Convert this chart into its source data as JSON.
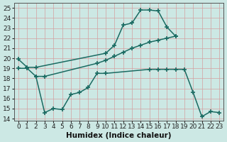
{
  "line1_x": [
    0,
    1,
    2,
    10,
    11,
    12,
    13,
    14,
    15,
    16,
    17,
    18
  ],
  "line1_y": [
    19.9,
    19.1,
    19.1,
    20.5,
    21.3,
    23.3,
    23.5,
    24.8,
    24.8,
    24.7,
    23.1,
    22.2
  ],
  "line2_x": [
    0,
    1,
    2,
    3,
    9,
    10,
    11,
    12,
    13,
    14,
    15,
    16,
    17,
    18
  ],
  "line2_y": [
    19.0,
    19.0,
    18.2,
    18.2,
    19.5,
    19.8,
    20.2,
    20.6,
    21.0,
    21.3,
    21.6,
    21.8,
    22.0,
    22.2
  ],
  "line3_x": [
    2,
    3,
    4,
    5,
    6,
    7,
    8,
    9,
    10,
    15,
    16,
    17,
    18,
    19,
    20,
    21,
    22,
    23
  ],
  "line3_y": [
    18.2,
    14.6,
    15.0,
    14.9,
    16.4,
    16.6,
    17.1,
    18.5,
    18.5,
    18.9,
    18.9,
    18.9,
    18.9,
    18.9,
    16.6,
    14.2,
    14.7,
    14.6
  ],
  "bg_color": "#cce8e4",
  "line_color": "#1a6b62",
  "grid_major_color": "#d4a0a0",
  "xlabel": "Humidex (Indice chaleur)",
  "xlim": [
    -0.5,
    23.5
  ],
  "ylim": [
    13.8,
    25.5
  ],
  "yticks": [
    14,
    15,
    16,
    17,
    18,
    19,
    20,
    21,
    22,
    23,
    24,
    25
  ],
  "xticks": [
    0,
    1,
    2,
    3,
    4,
    5,
    6,
    7,
    8,
    9,
    10,
    11,
    12,
    13,
    14,
    15,
    16,
    17,
    18,
    19,
    20,
    21,
    22,
    23
  ],
  "marker": "+",
  "markersize": 5,
  "linewidth": 1.1,
  "fontsize": 6.5,
  "xlabel_fontsize": 7.5
}
